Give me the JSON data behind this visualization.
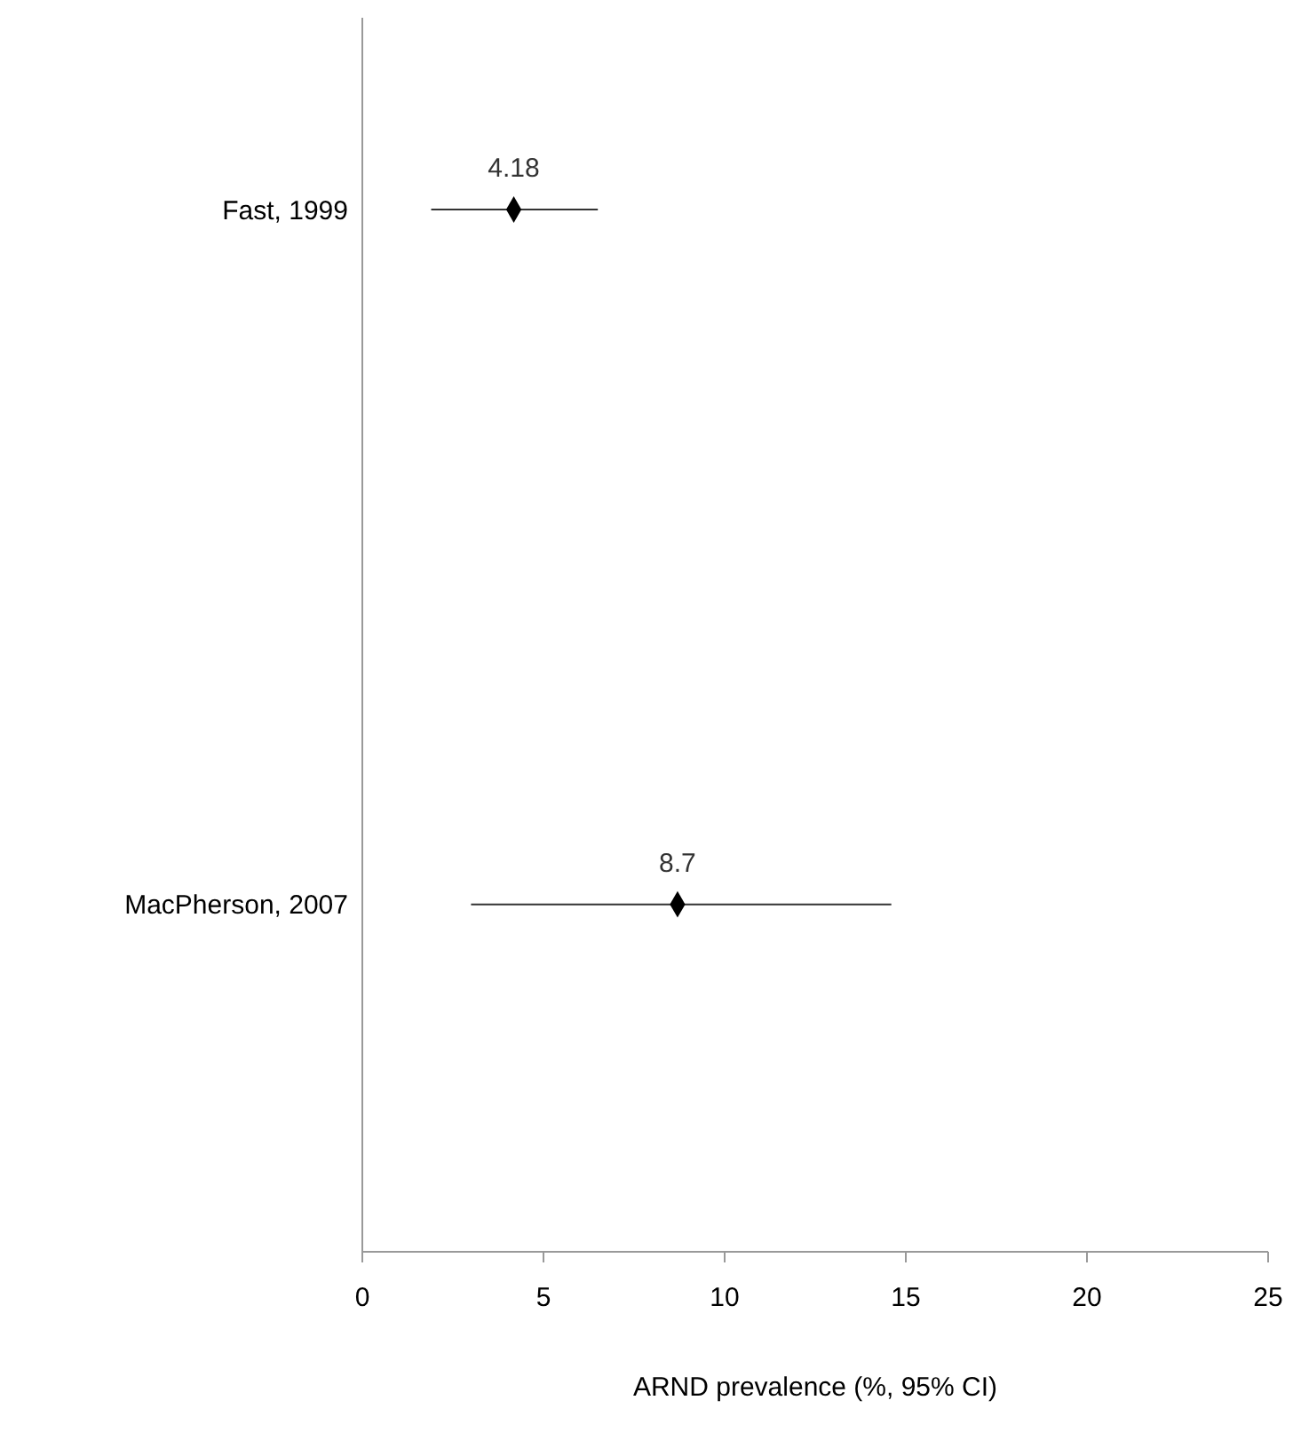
{
  "chart_data": {
    "type": "scatter",
    "orientation": "horizontal",
    "xlabel": "ARND prevalence (%, 95% CI)",
    "categories": [
      "Fast, 1999",
      "MacPherson, 2007"
    ],
    "series": [
      {
        "color": "#000000",
        "values": [
          4.18,
          8.7
        ],
        "errors": [
          [
            1.9,
            6.5
          ],
          [
            3.0,
            14.6
          ]
        ]
      }
    ],
    "xlim": [
      0,
      25
    ],
    "xticks": [
      0,
      5,
      10,
      15,
      20,
      25
    ],
    "marker": "diamond",
    "data_labels": true,
    "grid": false
  }
}
